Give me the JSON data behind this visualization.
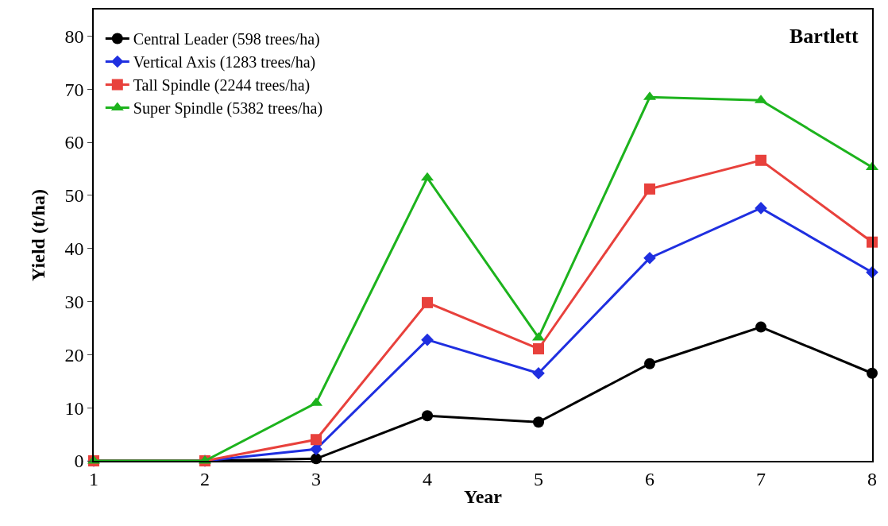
{
  "chart_data": {
    "type": "line",
    "xlabel": "Year",
    "ylabel": "Yield (t/ha)",
    "annotations": [
      "Bartlett"
    ],
    "x": [
      1,
      2,
      3,
      4,
      5,
      6,
      7,
      8
    ],
    "xlim": [
      1,
      8
    ],
    "xticks": [
      1,
      2,
      3,
      4,
      5,
      6,
      7,
      8
    ],
    "ylim": [
      0,
      85
    ],
    "yticks": [
      0,
      10,
      20,
      30,
      40,
      50,
      60,
      70,
      80
    ],
    "grid": false,
    "legend": "top left",
    "line_style": "solid",
    "series": [
      {
        "name": "Central Leader (598 trees/ha)",
        "color": "#000000",
        "marker": "circle",
        "values": [
          0,
          0,
          0.4,
          8.5,
          7.3,
          18.3,
          25.2,
          16.5
        ]
      },
      {
        "name": "Vertical Axis (1283 trees/ha)",
        "color": "#1f2fe0",
        "marker": "diamond",
        "values": [
          0,
          0,
          2.2,
          22.8,
          16.5,
          38.2,
          47.6,
          35.5
        ]
      },
      {
        "name": "Tall Spindle (2244 trees/ha)",
        "color": "#e8413c",
        "marker": "square",
        "values": [
          0,
          0,
          4.0,
          29.8,
          21.1,
          51.2,
          56.6,
          41.2
        ]
      },
      {
        "name": "Super Spindle (5382 trees/ha)",
        "color": "#1db31d",
        "marker": "triangle",
        "values": [
          0,
          0,
          10.9,
          53.3,
          23.2,
          68.5,
          67.9,
          55.3
        ]
      }
    ]
  }
}
